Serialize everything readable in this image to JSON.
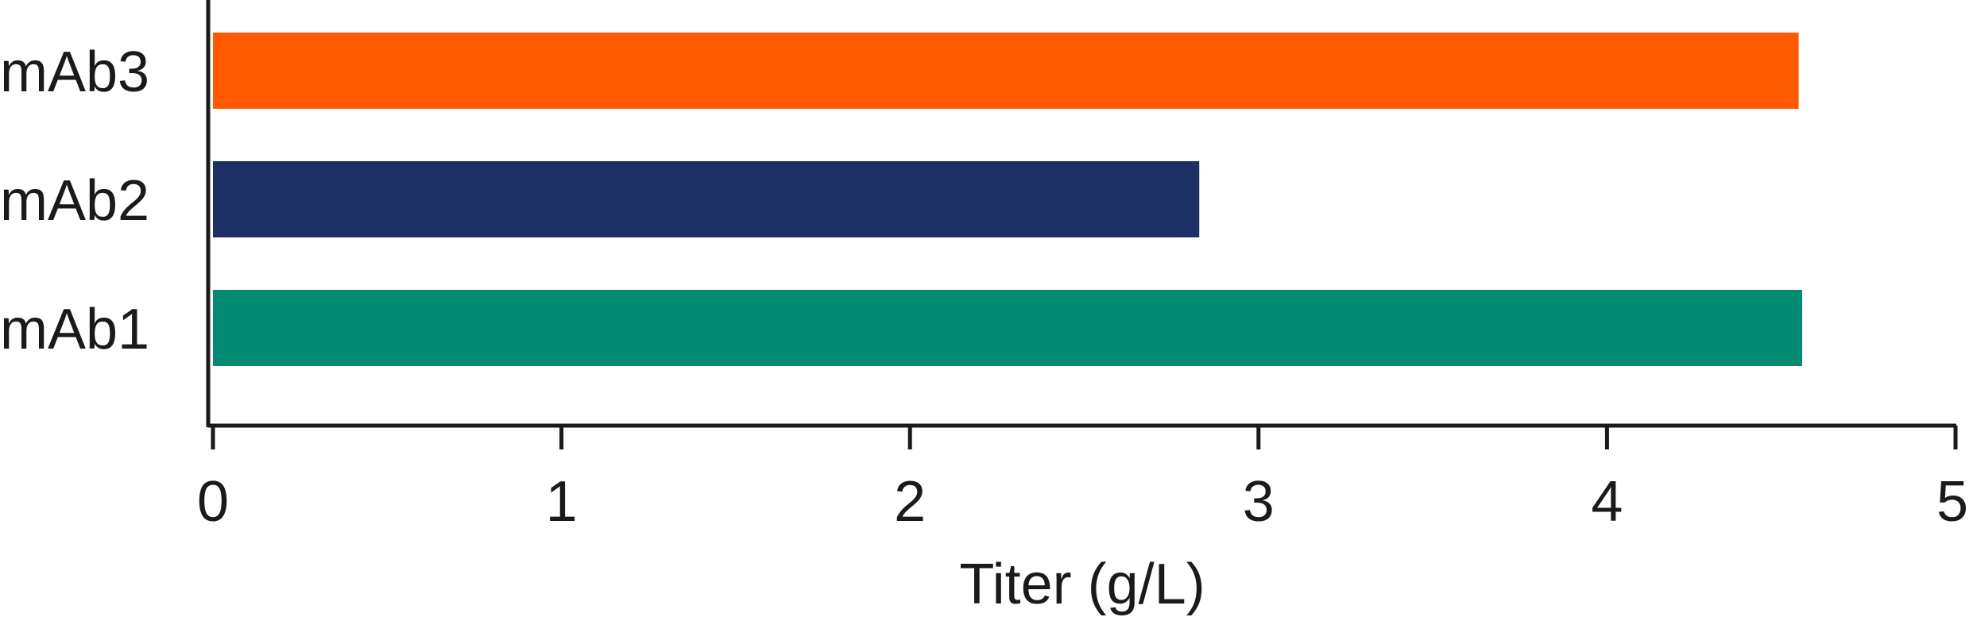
{
  "chart_data": {
    "type": "bar",
    "orientation": "horizontal",
    "categories": [
      "mAb1",
      "mAb2",
      "mAb3"
    ],
    "values": [
      4.56,
      2.83,
      4.55
    ],
    "colors": [
      "#028A73",
      "#1E3166",
      "#FF5A00"
    ],
    "xlabel": "Titer (g/L)",
    "ylabel": "",
    "title": "",
    "xlim": [
      0,
      5
    ],
    "xticks": [
      "0",
      "1",
      "2",
      "3",
      "4",
      "5"
    ],
    "grid": false,
    "legend": "none"
  }
}
